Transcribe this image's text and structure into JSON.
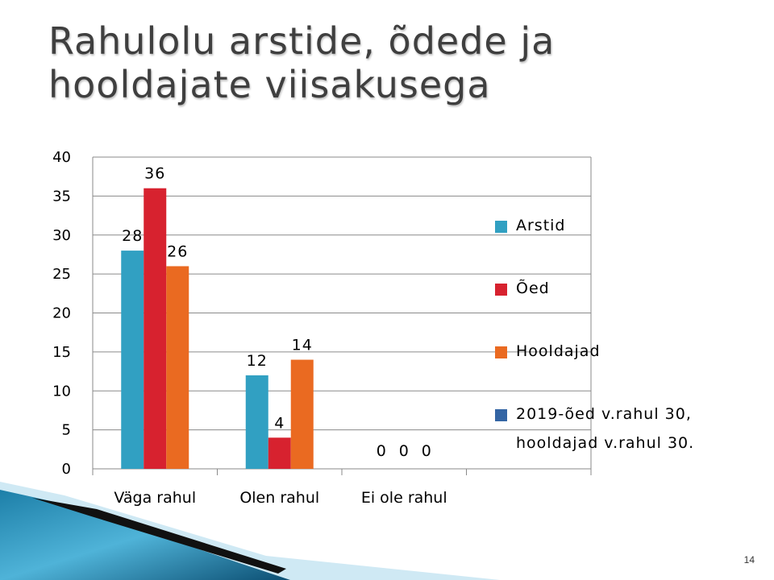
{
  "title": "Rahulolu arstide, õdede ja hooldajate viisakusega",
  "page_number": "14",
  "colors": {
    "arstid": "#31a0c2",
    "oed": "#d7222f",
    "hooldajad": "#ea6a21",
    "note": "#3465a4",
    "grid": "#8a8a8a",
    "title": "#3f3f3f"
  },
  "chart_data": {
    "type": "bar",
    "categories": [
      "Väga rahul",
      "Olen rahul",
      "Ei ole rahul"
    ],
    "series": [
      {
        "name": "Arstid",
        "values": [
          28,
          12,
          0
        ]
      },
      {
        "name": "Õed",
        "values": [
          36,
          4,
          0
        ]
      },
      {
        "name": "Hooldajad",
        "values": [
          26,
          14,
          0
        ]
      }
    ],
    "legend_note": [
      "2019-õed v.rahul 30,",
      "hooldajad v.rahul 30."
    ],
    "ylim": [
      0,
      40
    ],
    "yticks": [
      0,
      5,
      10,
      15,
      20,
      25,
      30,
      35,
      40
    ],
    "grid": true,
    "legend_position": "right",
    "title": "",
    "xlabel": "",
    "ylabel": ""
  }
}
